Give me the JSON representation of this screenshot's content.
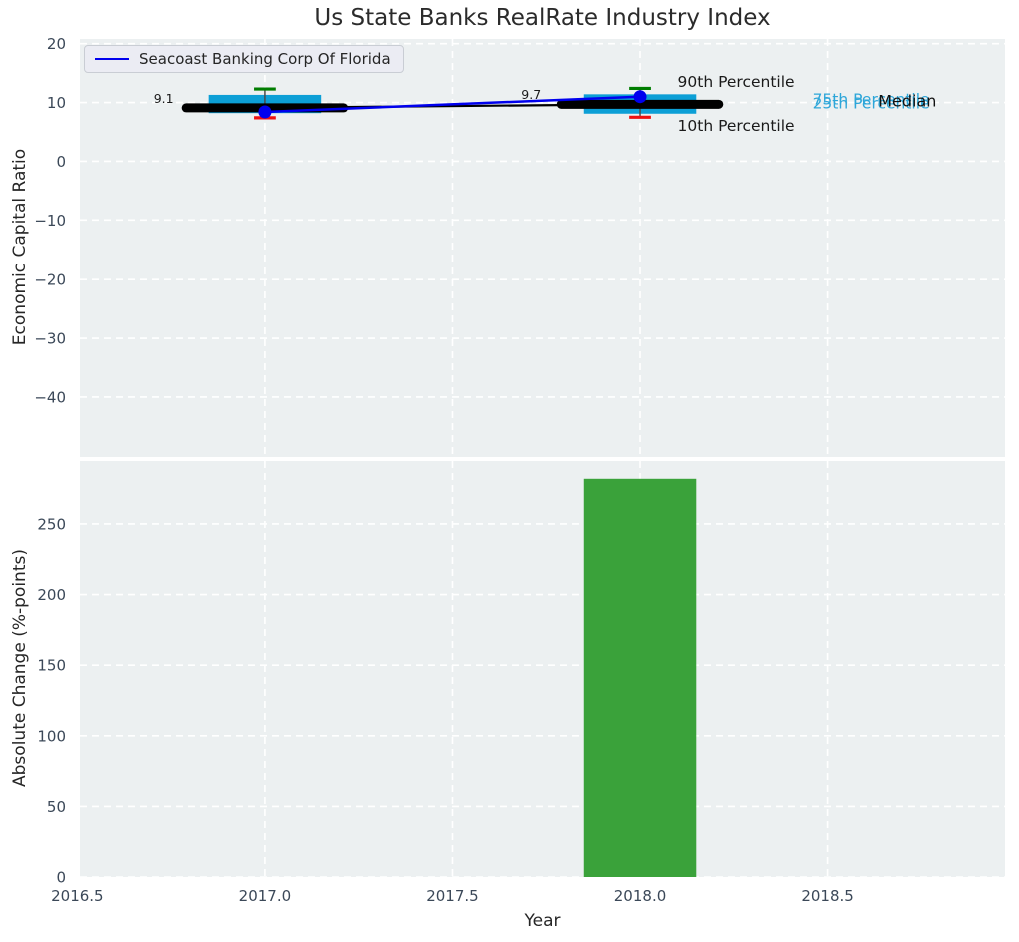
{
  "title": "Us State Banks RealRate Industry Index",
  "legend": {
    "label": "Seacoast Banking Corp Of Florida"
  },
  "colors": {
    "figure_bg": "#ffffff",
    "axes_bg": "#ecf0f1",
    "grid": "#ffffff",
    "tick_label": "#3b4858",
    "text": "#262626",
    "box_fill": "#0c9fd6",
    "bar_fill": "#3aa23a",
    "series_line": "#0000ee",
    "median_line": "#000000",
    "whisker": "#4a4a4a",
    "cap_top": "#007d00",
    "cap_bottom": "#ee1111",
    "annotation_cyan": "#2da6d9",
    "annotation_dark": "#1a1a1a"
  },
  "chart_data": [
    {
      "type": "box-line",
      "title": "Us State Banks RealRate Industry Index",
      "ylabel": "Economic Capital Ratio",
      "xlabel": "",
      "xlim": [
        2016.507,
        2018.973
      ],
      "ylim": [
        -50.2,
        20.8
      ],
      "yticks": [
        20,
        10,
        0,
        -10,
        -20,
        -30,
        -40
      ],
      "xticks": [
        2016.5,
        2017.0,
        2017.5,
        2018.0,
        2018.5
      ],
      "grid": true,
      "legend_position": "upper left",
      "years": [
        2017,
        2018
      ],
      "box_width": 0.3,
      "median_span": 0.42,
      "cap_width": 0.058,
      "percentiles": {
        "p90": [
          12.3,
          12.4
        ],
        "p75": [
          11.3,
          11.4
        ],
        "median": [
          9.1,
          9.7
        ],
        "p25": [
          8.2,
          8.1
        ],
        "p10": [
          7.4,
          7.5
        ]
      },
      "series": [
        {
          "name": "Seacoast Banking Corp Of Florida",
          "values": [
            8.4,
            11.0
          ]
        }
      ],
      "annotations": [
        {
          "text": "9.1",
          "x": 2016.73,
          "y": 10.5,
          "size": 12.5,
          "color": "#1a1a1a",
          "anchor": "middle"
        },
        {
          "text": "9.7",
          "x": 2017.71,
          "y": 11.2,
          "size": 12.5,
          "color": "#1a1a1a",
          "anchor": "middle"
        },
        {
          "text": "90th Percentile",
          "x": 2018.1,
          "y": 13.4,
          "size": 15.5,
          "color": "#1a1a1a",
          "anchor": "start"
        },
        {
          "text": "10th Percentile",
          "x": 2018.1,
          "y": 5.9,
          "size": 15.5,
          "color": "#1a1a1a",
          "anchor": "start"
        },
        {
          "text": "75th Percentile",
          "x": 2018.46,
          "y": 10.4,
          "size": 15.5,
          "color": "#2da6d9",
          "anchor": "start"
        },
        {
          "text": "25th Percentile",
          "x": 2018.46,
          "y": 9.8,
          "size": 15.5,
          "color": "#2da6d9",
          "anchor": "start"
        },
        {
          "text": "Median",
          "x": 2018.635,
          "y": 10.1,
          "size": 16,
          "color": "#111111",
          "anchor": "start"
        }
      ]
    },
    {
      "type": "bar",
      "title": "",
      "ylabel": "Absolute Change (%-points)",
      "xlabel": "Year",
      "xlim": [
        2016.507,
        2018.973
      ],
      "ylim": [
        0,
        294.6
      ],
      "yticks": [
        0,
        50,
        100,
        150,
        200,
        250
      ],
      "xticks": [
        2016.5,
        2017.0,
        2017.5,
        2018.0,
        2018.5
      ],
      "grid": true,
      "categories": [
        2018
      ],
      "values": [
        282
      ],
      "bar_width": 0.3
    }
  ]
}
